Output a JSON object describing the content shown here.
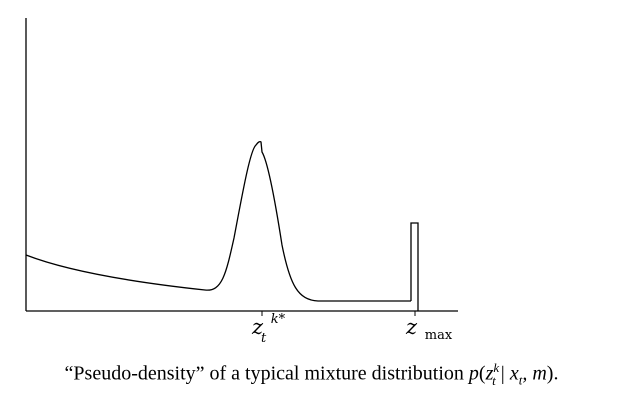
{
  "figure": {
    "curve_color": "#000000",
    "axis_color": "#000000",
    "labels": {
      "peak": {
        "base": "z",
        "sub": "t",
        "sup": "k*"
      },
      "max": {
        "base": "z",
        "sub": "max"
      }
    }
  },
  "caption": {
    "prefix": "“Pseudo-density” of a typical mixture distribution ",
    "func": "p",
    "open_paren": "(",
    "z_base": "z",
    "z_sup": "k",
    "z_sub": "t",
    "bar": " | ",
    "x_base": "x",
    "x_sub": "t",
    "rest": ", m",
    "close": ")."
  }
}
